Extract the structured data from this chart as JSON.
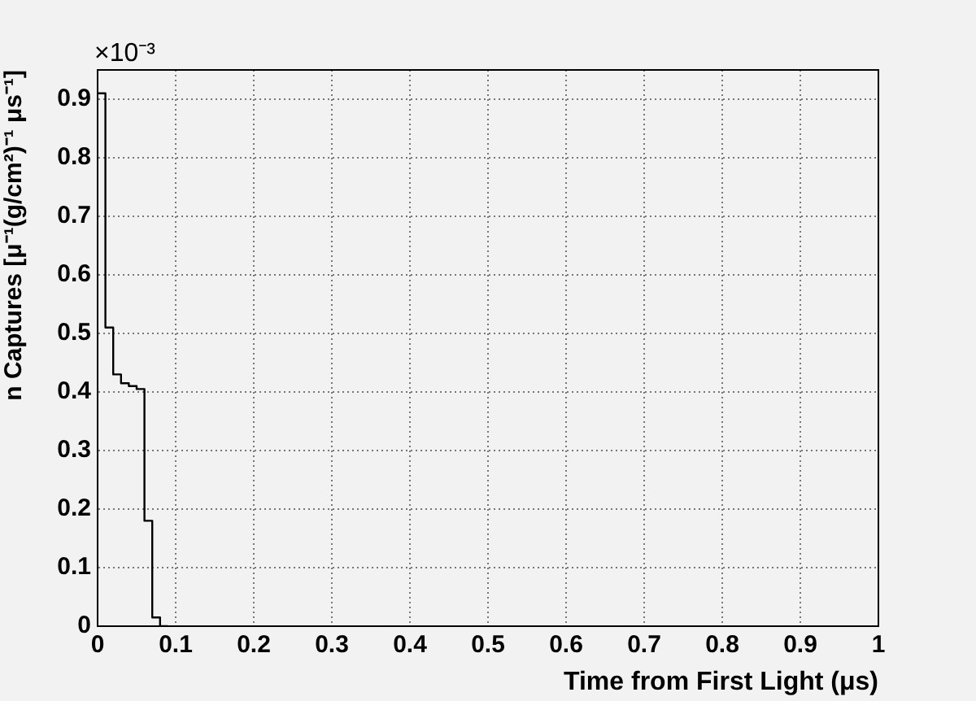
{
  "chart_data": {
    "type": "histogram",
    "xlabel": "Time from First Light (μs)",
    "ylabel": "n Captures [μ⁻¹(g/cm²)⁻¹ μs⁻¹]",
    "annotations": [
      "×10⁻³"
    ],
    "bins": [
      0,
      0.01,
      0.02,
      0.03,
      0.04,
      0.05,
      0.06,
      0.07,
      0.08,
      0.09
    ],
    "values": [
      0.91,
      0.51,
      0.43,
      0.415,
      0.41,
      0.405,
      0.18,
      0.015,
      0
    ],
    "color": "#000000",
    "xlim": [
      0,
      1
    ],
    "xticks": [
      0,
      0.1,
      0.2,
      0.3,
      0.4,
      0.5,
      0.6,
      0.7,
      0.8,
      0.9,
      1
    ],
    "ylim": [
      0,
      0.95
    ],
    "yticks": [
      0,
      0.1,
      0.2,
      0.3,
      0.4,
      0.5,
      0.6,
      0.7,
      0.8,
      0.9
    ],
    "grid": true
  }
}
